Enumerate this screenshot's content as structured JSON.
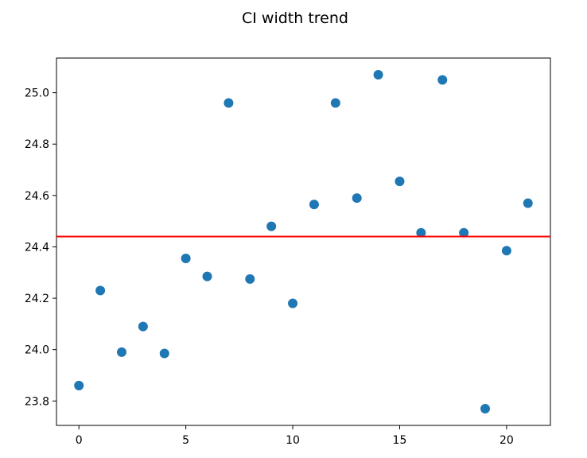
{
  "chart_data": {
    "type": "scatter",
    "title": "CI width trend",
    "xlabel": "",
    "ylabel": "",
    "xlim": [
      -1.05,
      22.05
    ],
    "ylim": [
      23.705,
      25.135
    ],
    "xticks": [
      0,
      5,
      10,
      15,
      20
    ],
    "xtick_labels": [
      "0",
      "5",
      "10",
      "15",
      "20"
    ],
    "yticks": [
      23.8,
      24.0,
      24.2,
      24.4,
      24.6,
      24.8,
      25.0
    ],
    "ytick_labels": [
      "23.8",
      "24.0",
      "24.2",
      "24.4",
      "24.6",
      "24.8",
      "25.0"
    ],
    "grid": false,
    "series": [
      {
        "x": [
          0,
          1,
          2,
          3,
          4,
          5,
          6,
          7,
          8,
          9,
          10,
          11,
          12,
          13,
          14,
          15,
          16,
          17,
          18,
          19,
          20,
          21
        ],
        "y": [
          23.86,
          24.23,
          23.99,
          24.09,
          23.985,
          24.355,
          24.285,
          24.96,
          24.275,
          24.48,
          24.18,
          24.565,
          24.96,
          24.59,
          25.07,
          24.655,
          24.455,
          25.05,
          24.455,
          23.77,
          24.385,
          24.57
        ],
        "color": "#1f77b4"
      }
    ],
    "reference_line": {
      "y": 24.44,
      "color": "#ff0000"
    }
  }
}
